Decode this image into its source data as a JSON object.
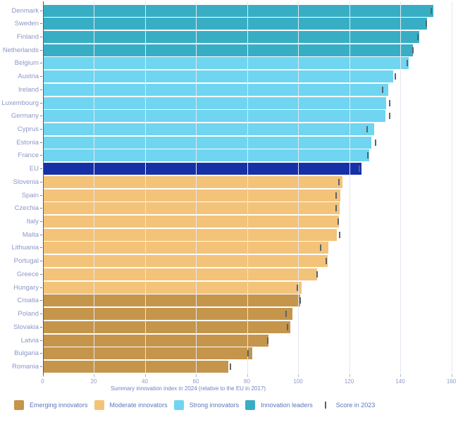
{
  "chart_data": {
    "type": "bar",
    "orientation": "horizontal",
    "title": "",
    "xlabel": "Summary innovation index in 2024 (relative to the EU in 2017)",
    "ylabel": "",
    "xlim": [
      0,
      160
    ],
    "xticks": [
      0,
      20,
      40,
      60,
      80,
      100,
      120,
      140,
      160
    ],
    "grid": "vertical",
    "legend_position": "bottom",
    "categories": [
      "Denmark",
      "Sweden",
      "Finland",
      "Netherlands",
      "Belgium",
      "Austria",
      "Ireland",
      "Luxembourg",
      "Germany",
      "Cyprus",
      "Estonia",
      "France",
      "EU",
      "Slovenia",
      "Spain",
      "Czechia",
      "Italy",
      "Malta",
      "Lithuania",
      "Portugal",
      "Greece",
      "Hungary",
      "Croatia",
      "Poland",
      "Slovakia",
      "Latvia",
      "Bulgaria",
      "Romania"
    ],
    "category_groups": [
      "leader",
      "leader",
      "leader",
      "leader",
      "strong",
      "strong",
      "strong",
      "strong",
      "strong",
      "strong",
      "strong",
      "strong",
      "eu",
      "moderate",
      "moderate",
      "moderate",
      "moderate",
      "moderate",
      "moderate",
      "moderate",
      "moderate",
      "moderate",
      "emerging",
      "emerging",
      "emerging",
      "emerging",
      "emerging",
      "emerging"
    ],
    "series": [
      {
        "name": "Summary innovation index in 2024",
        "values": [
          152.7,
          150.3,
          147.1,
          144.7,
          143.1,
          137.1,
          135.0,
          134.1,
          133.8,
          129.5,
          128.4,
          127.5,
          124.6,
          117.0,
          116.4,
          116.0,
          115.8,
          115.0,
          111.7,
          111.3,
          107.1,
          101.2,
          100.5,
          97.4,
          96.8,
          88.1,
          81.8,
          72.3
        ]
      },
      {
        "name": "Score in 2023",
        "style": "tick-marker",
        "values": [
          152.1,
          150.0,
          146.8,
          144.9,
          142.6,
          137.9,
          133.1,
          135.6,
          135.8,
          126.9,
          130.1,
          127.2,
          123.8,
          115.9,
          114.8,
          114.7,
          115.7,
          116.0,
          108.6,
          110.8,
          107.4,
          99.5,
          100.7,
          95.2,
          95.6,
          88.0,
          80.4,
          73.4
        ]
      }
    ]
  },
  "legend": {
    "items": [
      {
        "label": "Emerging innovators",
        "key": "emerging"
      },
      {
        "label": "Moderate innovators",
        "key": "moderate"
      },
      {
        "label": "Strong innovators",
        "key": "strong"
      },
      {
        "label": "Innovation leaders",
        "key": "leader"
      }
    ],
    "score_marker_label": "Score in 2023"
  },
  "colors": {
    "emerging": "#c4954a",
    "moderate": "#f3c379",
    "strong": "#6fd5f1",
    "leader": "#38aec5",
    "eu": "#1631a8",
    "marker": "#5c636b",
    "grid": "#e4e7f1"
  }
}
